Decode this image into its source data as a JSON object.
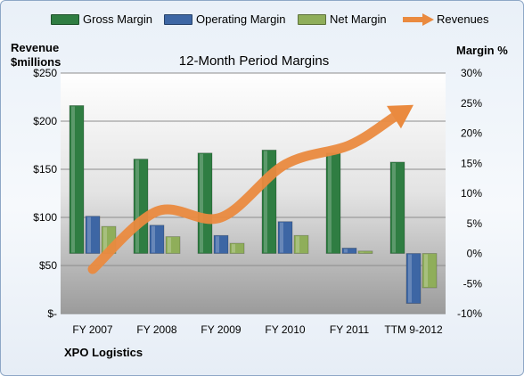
{
  "chart_data": {
    "type": "bar",
    "title": "12-Month Period Margins",
    "company": "XPO Logistics",
    "left_axis_title": [
      "Revenue",
      "$millions"
    ],
    "right_axis_title": "Margin %",
    "categories": [
      "FY 2007",
      "FY 2008",
      "FY 2009",
      "FY 2010",
      "FY 2011",
      "TTM 9-2012"
    ],
    "left_ticks": [
      "$-",
      "$50",
      "$100",
      "$150",
      "$200",
      "$250"
    ],
    "right_ticks": [
      "-10%",
      "-5%",
      "0%",
      "5%",
      "10%",
      "15%",
      "20%",
      "25%",
      "30%"
    ],
    "ylim_left": [
      0,
      250
    ],
    "ylim_right": [
      -10,
      30
    ],
    "series": [
      {
        "name": "Gross Margin",
        "kind": "bar",
        "color": "#2f7d42",
        "values": [
          24.6,
          15.7,
          16.7,
          17.2,
          16.7,
          15.2
        ]
      },
      {
        "name": "Operating Margin",
        "kind": "bar",
        "color": "#3d66a4",
        "values": [
          6.2,
          4.7,
          3.0,
          5.3,
          0.9,
          -8.3
        ]
      },
      {
        "name": "Net Margin",
        "kind": "bar",
        "color": "#8fae5a",
        "values": [
          4.5,
          2.8,
          1.7,
          3.0,
          0.4,
          -5.7
        ]
      },
      {
        "name": "Revenues",
        "kind": "arrow",
        "color": "#ea8a3f",
        "values": [
          -2.6,
          7.0,
          6.0,
          14.8,
          18.0,
          24.7
        ]
      }
    ],
    "legend_position": "top",
    "grid": true
  }
}
